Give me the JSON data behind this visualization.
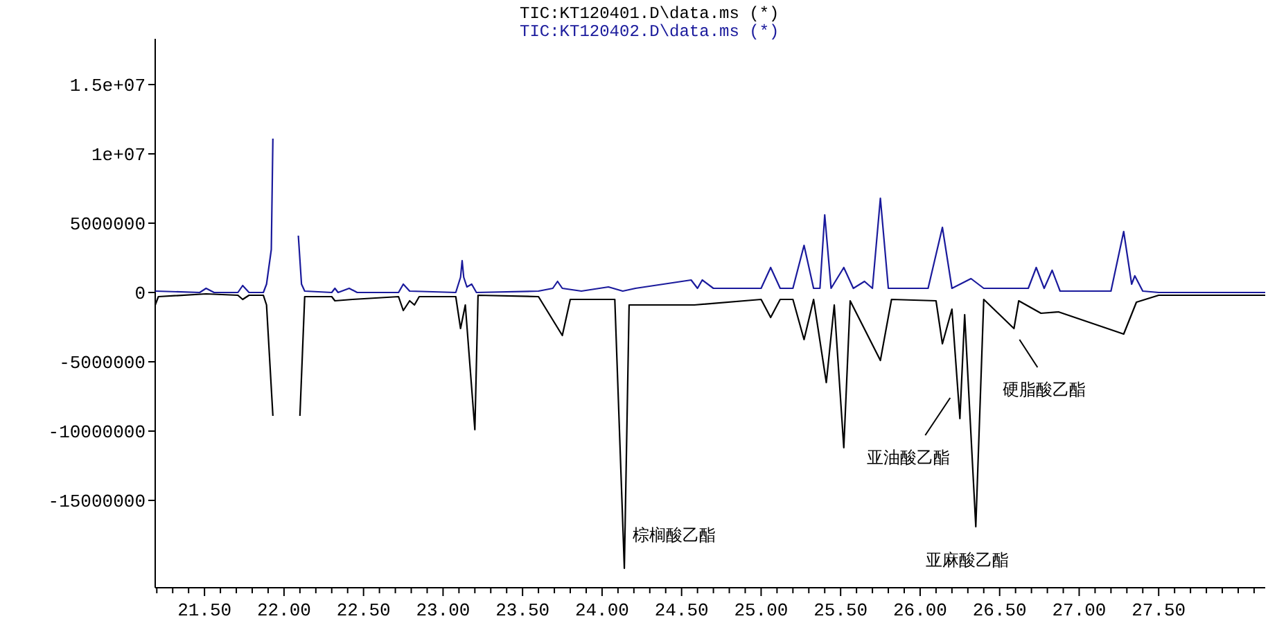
{
  "chart_data": {
    "type": "line",
    "legend": "top",
    "grid": false,
    "marker": "none",
    "line_style": "solid",
    "xlim": [
      21.19,
      28.17
    ],
    "ylim": [
      -21300000,
      18300000
    ],
    "xticks": [
      {
        "value": 21.2,
        "label": null
      },
      {
        "value": 21.3,
        "label": null
      },
      {
        "value": 21.4,
        "label": null
      },
      {
        "value": 21.5,
        "label": "21.50"
      },
      {
        "value": 21.6,
        "label": null
      },
      {
        "value": 21.7,
        "label": null
      },
      {
        "value": 21.8,
        "label": null
      },
      {
        "value": 21.9,
        "label": null
      },
      {
        "value": 22.0,
        "label": "22.00"
      },
      {
        "value": 22.1,
        "label": null
      },
      {
        "value": 22.2,
        "label": null
      },
      {
        "value": 22.3,
        "label": null
      },
      {
        "value": 22.4,
        "label": null
      },
      {
        "value": 22.5,
        "label": "22.50"
      },
      {
        "value": 22.6,
        "label": null
      },
      {
        "value": 22.7,
        "label": null
      },
      {
        "value": 22.8,
        "label": null
      },
      {
        "value": 22.9,
        "label": null
      },
      {
        "value": 23.0,
        "label": "23.00"
      },
      {
        "value": 23.1,
        "label": null
      },
      {
        "value": 23.2,
        "label": null
      },
      {
        "value": 23.3,
        "label": null
      },
      {
        "value": 23.4,
        "label": null
      },
      {
        "value": 23.5,
        "label": "23.50"
      },
      {
        "value": 23.6,
        "label": null
      },
      {
        "value": 23.7,
        "label": null
      },
      {
        "value": 23.8,
        "label": null
      },
      {
        "value": 23.9,
        "label": null
      },
      {
        "value": 24.0,
        "label": "24.00"
      },
      {
        "value": 24.1,
        "label": null
      },
      {
        "value": 24.2,
        "label": null
      },
      {
        "value": 24.3,
        "label": null
      },
      {
        "value": 24.4,
        "label": null
      },
      {
        "value": 24.5,
        "label": "24.50"
      },
      {
        "value": 24.6,
        "label": null
      },
      {
        "value": 24.7,
        "label": null
      },
      {
        "value": 24.8,
        "label": null
      },
      {
        "value": 24.9,
        "label": null
      },
      {
        "value": 25.0,
        "label": "25.00"
      },
      {
        "value": 25.1,
        "label": null
      },
      {
        "value": 25.2,
        "label": null
      },
      {
        "value": 25.3,
        "label": null
      },
      {
        "value": 25.4,
        "label": null
      },
      {
        "value": 25.5,
        "label": "25.50"
      },
      {
        "value": 25.6,
        "label": null
      },
      {
        "value": 25.7,
        "label": null
      },
      {
        "value": 25.8,
        "label": null
      },
      {
        "value": 25.9,
        "label": null
      },
      {
        "value": 26.0,
        "label": "26.00"
      },
      {
        "value": 26.1,
        "label": null
      },
      {
        "value": 26.2,
        "label": null
      },
      {
        "value": 26.3,
        "label": null
      },
      {
        "value": 26.4,
        "label": null
      },
      {
        "value": 26.5,
        "label": "26.50"
      },
      {
        "value": 26.6,
        "label": null
      },
      {
        "value": 26.7,
        "label": null
      },
      {
        "value": 26.8,
        "label": null
      },
      {
        "value": 26.9,
        "label": null
      },
      {
        "value": 27.0,
        "label": "27.00"
      },
      {
        "value": 27.1,
        "label": null
      },
      {
        "value": 27.2,
        "label": null
      },
      {
        "value": 27.3,
        "label": null
      },
      {
        "value": 27.4,
        "label": null
      },
      {
        "value": 27.5,
        "label": "27.50"
      },
      {
        "value": 27.6,
        "label": null
      },
      {
        "value": 27.7,
        "label": null
      },
      {
        "value": 27.8,
        "label": null
      },
      {
        "value": 27.9,
        "label": null
      },
      {
        "value": 28.0,
        "label": null
      },
      {
        "value": 28.1,
        "label": null
      }
    ],
    "yticks": [
      {
        "value": 15000000,
        "label": "1.5e+07"
      },
      {
        "value": 10000000,
        "label": "1e+07"
      },
      5000000,
      0,
      -5000000,
      -10000000,
      -15000000
    ],
    "series": [
      {
        "name": "TIC:KT120401.D\\data.ms (*)",
        "color": "#000000",
        "x": [
          21.19,
          21.21,
          21.51,
          21.71,
          21.74,
          21.78,
          21.87,
          21.89,
          21.93,
          21.95,
          22.09,
          22.1,
          22.13,
          22.3,
          22.32,
          22.43,
          22.72,
          22.75,
          22.79,
          22.82,
          22.85,
          23.08,
          23.11,
          23.14,
          23.2,
          23.22,
          23.6,
          23.75,
          23.8,
          24.08,
          24.14,
          24.17,
          24.58,
          25.0,
          25.06,
          25.12,
          25.2,
          25.27,
          25.33,
          25.41,
          25.46,
          25.52,
          25.56,
          25.75,
          25.82,
          26.1,
          26.14,
          26.2,
          26.25,
          26.28,
          26.35,
          26.4,
          26.59,
          26.62,
          26.76,
          26.87,
          27.28,
          27.36,
          27.5,
          28.17
        ],
        "values": [
          -900000,
          -300000,
          -100000,
          -200000,
          -500000,
          -200000,
          -200000,
          -900000,
          -8900000,
          null,
          null,
          -8900000,
          -300000,
          -300000,
          -600000,
          -500000,
          -300000,
          -1300000,
          -600000,
          -900000,
          -300000,
          -300000,
          -2600000,
          -900000,
          -9900000,
          -200000,
          -300000,
          -3100000,
          -500000,
          -500000,
          -19900000,
          -900000,
          -900000,
          -500000,
          -1800000,
          -500000,
          -500000,
          -3400000,
          -500000,
          -6500000,
          -900000,
          -11200000,
          -600000,
          -4900000,
          -500000,
          -600000,
          -3700000,
          -1200000,
          -9100000,
          -1600000,
          -16900000,
          -500000,
          -2600000,
          -600000,
          -1500000,
          -1400000,
          -3000000,
          -700000,
          -200000,
          -200000
        ]
      },
      {
        "name": "TIC:KT120402.D\\data.ms (*)",
        "color": "#1a1a9c",
        "x": [
          21.19,
          21.47,
          21.51,
          21.56,
          21.71,
          21.74,
          21.78,
          21.87,
          21.89,
          21.92,
          21.93,
          21.94,
          22.08,
          22.09,
          22.11,
          22.13,
          22.3,
          22.32,
          22.34,
          22.41,
          22.46,
          22.72,
          22.75,
          22.79,
          23.08,
          23.11,
          23.12,
          23.13,
          23.15,
          23.18,
          23.21,
          23.6,
          23.69,
          23.72,
          23.75,
          23.87,
          24.04,
          24.13,
          24.21,
          24.56,
          24.6,
          24.63,
          24.7,
          25.0,
          25.06,
          25.12,
          25.2,
          25.27,
          25.33,
          25.37,
          25.4,
          25.44,
          25.52,
          25.58,
          25.65,
          25.7,
          25.75,
          25.8,
          26.05,
          26.14,
          26.2,
          26.32,
          26.4,
          26.68,
          26.73,
          26.78,
          26.83,
          26.88,
          27.2,
          27.28,
          27.33,
          27.35,
          27.4,
          27.5,
          28.17
        ],
        "values": [
          100000,
          0,
          300000,
          0,
          0,
          500000,
          0,
          0,
          600000,
          3100000,
          11100000,
          null,
          null,
          4100000,
          600000,
          100000,
          0,
          300000,
          0,
          300000,
          0,
          0,
          600000,
          100000,
          0,
          1100000,
          2300000,
          1100000,
          400000,
          600000,
          0,
          100000,
          300000,
          800000,
          300000,
          100000,
          400000,
          100000,
          300000,
          900000,
          300000,
          900000,
          300000,
          300000,
          1800000,
          300000,
          300000,
          3400000,
          300000,
          300000,
          5600000,
          300000,
          1800000,
          300000,
          800000,
          300000,
          6800000,
          300000,
          300000,
          4700000,
          300000,
          1000000,
          300000,
          300000,
          1800000,
          300000,
          1600000,
          100000,
          100000,
          4400000,
          600000,
          1200000,
          100000,
          0,
          0
        ]
      }
    ],
    "annotations": [
      {
        "text": "棕榈酸乙酯",
        "x": 24.14,
        "y": -19900000
      },
      {
        "text": "亚油酸乙酯",
        "x": 26.25,
        "y": -9100000
      },
      {
        "text": "亚麻酸乙酯",
        "x": 26.35,
        "y": -16900000
      },
      {
        "text": "硬脂酸乙酯",
        "x": 26.59,
        "y": -2600000
      }
    ]
  }
}
